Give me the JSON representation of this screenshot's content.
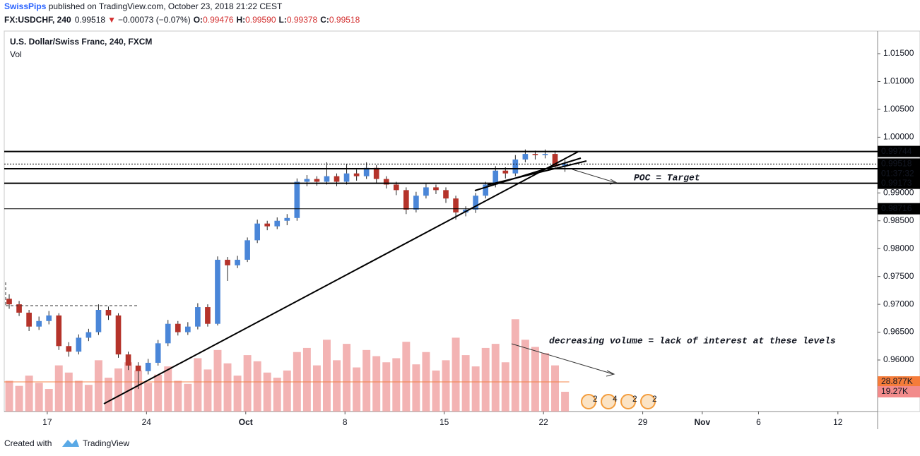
{
  "header": {
    "author": "SwissPips",
    "published": " published on TradingView.com, October 23, 2018 21:22 CEST",
    "symbol": "FX:USDCHF, 240",
    "last": "0.99518",
    "arrow": "▼",
    "change": "−0.00073 (−0.07%)",
    "open_label": "O:",
    "open": "0.99476",
    "high_label": "H:",
    "high": "0.99590",
    "low_label": "L:",
    "low": "0.99378",
    "close_label": "C:",
    "close": "0.99518"
  },
  "chart_data": {
    "type": "candlestick",
    "title": "U.S. Dollar/Swiss Franc, 240, FXCM",
    "volume_label": "Vol",
    "x": [
      1.5,
      4.5,
      7.5,
      10.5,
      13.5,
      16.5,
      19.5,
      22.5,
      25.5,
      28.5,
      31.5,
      34.5,
      37.5,
      40.5,
      43.5,
      46.5,
      49.5,
      52.5,
      55.5,
      58.5,
      61.5,
      64.5,
      67.5,
      70.5,
      73.5,
      76.5,
      79.5,
      82.5,
      85.5,
      88.5,
      91.5,
      94.5,
      97.5,
      100.5,
      103.5,
      106.5,
      109.5,
      112.5,
      115.5,
      118.5,
      121.5,
      124.5,
      127.5,
      130.5,
      133.5,
      136.5,
      139.5,
      142.5,
      145.5,
      148.5,
      151.5,
      154.5,
      157.5,
      160.5,
      163.5,
      166.5,
      169.5
    ],
    "open": [
      0.971,
      0.97,
      0.9685,
      0.966,
      0.967,
      0.968,
      0.9625,
      0.9615,
      0.964,
      0.965,
      0.969,
      0.968,
      0.961,
      0.959,
      0.958,
      0.9595,
      0.963,
      0.9665,
      0.965,
      0.966,
      0.9695,
      0.9665,
      0.978,
      0.977,
      0.978,
      0.9815,
      0.9845,
      0.984,
      0.985,
      0.9855,
      0.992,
      0.9925,
      0.992,
      0.993,
      0.992,
      0.9935,
      0.993,
      0.9945,
      0.9925,
      0.9915,
      0.9905,
      0.987,
      0.9895,
      0.991,
      0.9905,
      0.989,
      0.9865,
      0.987,
      0.9895,
      0.9915,
      0.994,
      0.9935,
      0.996,
      0.997,
      0.9968,
      0.997,
      0.99476
    ],
    "high": [
      0.9718,
      0.9706,
      0.969,
      0.9678,
      0.9688,
      0.9684,
      0.9632,
      0.9646,
      0.9656,
      0.97,
      0.9696,
      0.9684,
      0.9615,
      0.9596,
      0.9602,
      0.9636,
      0.9672,
      0.967,
      0.9668,
      0.9702,
      0.97,
      0.9786,
      0.9785,
      0.9787,
      0.982,
      0.9852,
      0.985,
      0.9856,
      0.9862,
      0.9926,
      0.9932,
      0.993,
      0.9955,
      0.9935,
      0.9952,
      0.9942,
      0.9955,
      0.995,
      0.993,
      0.992,
      0.991,
      0.9902,
      0.9916,
      0.9915,
      0.991,
      0.9895,
      0.9876,
      0.99,
      0.992,
      0.9948,
      0.9946,
      0.9968,
      0.9978,
      0.9976,
      0.9978,
      0.9976,
      0.9959
    ],
    "low": [
      0.9692,
      0.9679,
      0.9652,
      0.9654,
      0.9664,
      0.9618,
      0.9606,
      0.961,
      0.9634,
      0.9645,
      0.9672,
      0.9604,
      0.9582,
      0.9548,
      0.9574,
      0.959,
      0.9625,
      0.9644,
      0.9645,
      0.9655,
      0.966,
      0.9662,
      0.9742,
      0.9765,
      0.9776,
      0.981,
      0.9833,
      0.9835,
      0.9842,
      0.985,
      0.9912,
      0.9913,
      0.9915,
      0.9912,
      0.9915,
      0.9922,
      0.9925,
      0.9918,
      0.9908,
      0.9896,
      0.9862,
      0.9865,
      0.989,
      0.9898,
      0.9882,
      0.9852,
      0.9858,
      0.9864,
      0.989,
      0.991,
      0.9926,
      0.993,
      0.9955,
      0.996,
      0.9962,
      0.9944,
      0.99378
    ],
    "close": [
      0.97,
      0.9685,
      0.966,
      0.967,
      0.968,
      0.9625,
      0.9615,
      0.964,
      0.965,
      0.969,
      0.968,
      0.961,
      0.959,
      0.958,
      0.9595,
      0.963,
      0.9665,
      0.965,
      0.966,
      0.9695,
      0.9665,
      0.978,
      0.977,
      0.978,
      0.9815,
      0.9845,
      0.984,
      0.985,
      0.9855,
      0.992,
      0.9925,
      0.992,
      0.993,
      0.992,
      0.9935,
      0.993,
      0.9945,
      0.9925,
      0.9915,
      0.9905,
      0.987,
      0.9895,
      0.991,
      0.9905,
      0.989,
      0.9865,
      0.987,
      0.9895,
      0.9915,
      0.994,
      0.9935,
      0.996,
      0.997,
      0.9968,
      0.997,
      0.99476,
      0.99518
    ],
    "volume": [
      30000,
      25000,
      35000,
      28000,
      22000,
      45000,
      38000,
      30000,
      26000,
      50000,
      33000,
      42000,
      48000,
      40000,
      28000,
      36000,
      44000,
      30000,
      27000,
      52000,
      41000,
      60000,
      47000,
      35000,
      55000,
      49000,
      38000,
      33000,
      40000,
      58000,
      62000,
      45000,
      70000,
      50000,
      66000,
      43000,
      60000,
      54000,
      48000,
      52000,
      68000,
      46000,
      58000,
      40000,
      50000,
      72000,
      55000,
      44000,
      62000,
      66000,
      48000,
      90000,
      70000,
      63000,
      57000,
      45000,
      19270
    ],
    "up_color": "#4a86d8",
    "down_color": "#b5332a",
    "volume_color": "#ef9a9a",
    "xlim": [
      0,
      264
    ],
    "xticks": [
      {
        "value": 13,
        "label": "17"
      },
      {
        "value": 43,
        "label": "24"
      },
      {
        "value": 73,
        "label": "Oct"
      },
      {
        "value": 103,
        "label": "8"
      },
      {
        "value": 133,
        "label": "15"
      },
      {
        "value": 163,
        "label": "22"
      },
      {
        "value": 193,
        "label": "29"
      },
      {
        "value": 211,
        "label": "Nov"
      },
      {
        "value": 228,
        "label": "6"
      },
      {
        "value": 252,
        "label": "12"
      }
    ],
    "ylim": [
      0.95075,
      1.01906
    ],
    "yticks": [
      {
        "value": 1.015,
        "label": "1.01500"
      },
      {
        "value": 1.01,
        "label": "1.01000"
      },
      {
        "value": 1.005,
        "label": "1.00500"
      },
      {
        "value": 1.0,
        "label": "1.00000"
      },
      {
        "value": 0.99,
        "label": "0.99000"
      },
      {
        "value": 0.985,
        "label": "0.98500"
      },
      {
        "value": 0.98,
        "label": "0.98000"
      },
      {
        "value": 0.975,
        "label": "0.97500"
      },
      {
        "value": 0.97,
        "label": "0.97000"
      },
      {
        "value": 0.965,
        "label": "0.96500"
      },
      {
        "value": 0.96,
        "label": "0.96000"
      }
    ],
    "y2lim": [
      0,
      371000
    ],
    "y2markers": [
      {
        "value": 28877,
        "label": "28.877K",
        "color": "#f57c3a"
      },
      {
        "value": 19270,
        "label": "19.27K",
        "color": "#f28b8b"
      }
    ],
    "levels": [
      {
        "value": 0.99744,
        "label": "0.99744"
      },
      {
        "value": 0.99518,
        "label": "0.99518",
        "countdown": "01:37:32"
      },
      0.99434,
      {
        "value": 0.99173,
        "label": "0.99173"
      },
      {
        "value": 0.98716,
        "label": "0.98716"
      }
    ],
    "annotations": [
      "POC = Target",
      "decreasing volume = lack of interest at these levels"
    ],
    "events": [
      "2",
      "4",
      "2",
      "2"
    ]
  },
  "footer": {
    "created": "Created with",
    "brand": "TradingView"
  }
}
